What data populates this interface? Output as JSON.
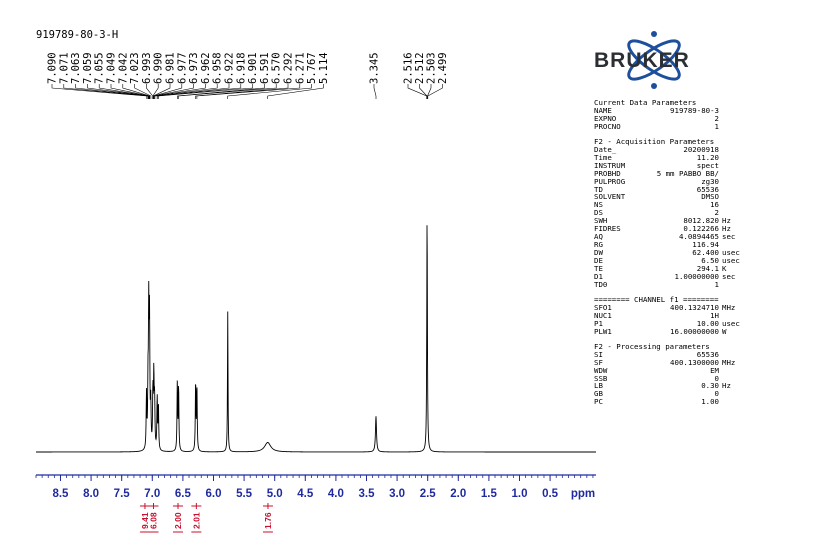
{
  "sample_id": "919789-80-3-H",
  "logo_text": "BRUKER",
  "params": {
    "sections": [
      {
        "title": "Current Data Parameters",
        "rows": [
          {
            "key": "NAME",
            "value": "919789-80-3",
            "unit": ""
          },
          {
            "key": "EXPNO",
            "value": "2",
            "unit": ""
          },
          {
            "key": "PROCNO",
            "value": "1",
            "unit": ""
          }
        ]
      },
      {
        "title": "F2 - Acquisition Parameters",
        "rows": [
          {
            "key": "Date_",
            "value": "20200918",
            "unit": ""
          },
          {
            "key": "Time",
            "value": "11.20",
            "unit": ""
          },
          {
            "key": "INSTRUM",
            "value": "spect",
            "unit": ""
          },
          {
            "key": "PROBHD",
            "value": "5 mm PABBO BB/",
            "unit": ""
          },
          {
            "key": "PULPROG",
            "value": "zg30",
            "unit": ""
          },
          {
            "key": "TD",
            "value": "65536",
            "unit": ""
          },
          {
            "key": "SOLVENT",
            "value": "DMSO",
            "unit": ""
          },
          {
            "key": "NS",
            "value": "16",
            "unit": ""
          },
          {
            "key": "DS",
            "value": "2",
            "unit": ""
          },
          {
            "key": "SWH",
            "value": "8012.820",
            "unit": "Hz"
          },
          {
            "key": "FIDRES",
            "value": "0.122266",
            "unit": "Hz"
          },
          {
            "key": "AQ",
            "value": "4.0894465",
            "unit": "sec"
          },
          {
            "key": "RG",
            "value": "116.94",
            "unit": ""
          },
          {
            "key": "DW",
            "value": "62.400",
            "unit": "usec"
          },
          {
            "key": "DE",
            "value": "6.50",
            "unit": "usec"
          },
          {
            "key": "TE",
            "value": "294.1",
            "unit": "K"
          },
          {
            "key": "D1",
            "value": "1.00000000",
            "unit": "sec"
          },
          {
            "key": "TD0",
            "value": "1",
            "unit": ""
          }
        ]
      },
      {
        "title": "======== CHANNEL f1 ========",
        "rows": [
          {
            "key": "SFO1",
            "value": "400.1324710",
            "unit": "MHz"
          },
          {
            "key": "NUC1",
            "value": "1H",
            "unit": ""
          },
          {
            "key": "P1",
            "value": "10.00",
            "unit": "usec"
          },
          {
            "key": "PLW1",
            "value": "16.00000000",
            "unit": "W"
          }
        ]
      },
      {
        "title": "F2 - Processing parameters",
        "rows": [
          {
            "key": "SI",
            "value": "65536",
            "unit": ""
          },
          {
            "key": "SF",
            "value": "400.1300000",
            "unit": "MHz"
          },
          {
            "key": "WDW",
            "value": "EM",
            "unit": ""
          },
          {
            "key": "SSB",
            "value": "0",
            "unit": ""
          },
          {
            "key": "LB",
            "value": "0.30",
            "unit": "Hz"
          },
          {
            "key": "GB",
            "value": "0",
            "unit": ""
          },
          {
            "key": "PC",
            "value": "1.00",
            "unit": ""
          }
        ]
      }
    ]
  },
  "chart_data": {
    "type": "line",
    "xlabel": "ppm",
    "xlim": [
      8.9,
      -0.25
    ],
    "x_ticks": [
      "8.5",
      "8.0",
      "7.5",
      "7.0",
      "6.5",
      "6.0",
      "5.5",
      "5.0",
      "4.5",
      "4.0",
      "3.5",
      "3.0",
      "2.5",
      "2.0",
      "1.5",
      "1.0",
      "0.5"
    ],
    "peak_labels": [
      "7.090",
      "7.071",
      "7.063",
      "7.059",
      "7.055",
      "7.049",
      "7.042",
      "7.023",
      "6.993",
      "6.990",
      "6.981",
      "6.977",
      "6.973",
      "6.962",
      "6.958",
      "6.922",
      "6.918",
      "6.901",
      "6.591",
      "6.570",
      "6.292",
      "6.271",
      "5.767",
      "5.114",
      "3.345",
      "2.516",
      "2.512",
      "2.503",
      "2.499"
    ],
    "peaks": [
      {
        "ppm": 7.095,
        "height": 0.23,
        "width": 0.006
      },
      {
        "ppm": 7.07,
        "height": 0.25,
        "width": 0.006
      },
      {
        "ppm": 7.058,
        "height": 0.56,
        "width": 0.006
      },
      {
        "ppm": 7.045,
        "height": 0.52,
        "width": 0.006
      },
      {
        "ppm": 7.025,
        "height": 0.18,
        "width": 0.006
      },
      {
        "ppm": 6.99,
        "height": 0.24,
        "width": 0.006
      },
      {
        "ppm": 6.975,
        "height": 0.3,
        "width": 0.006
      },
      {
        "ppm": 6.962,
        "height": 0.2,
        "width": 0.006
      },
      {
        "ppm": 6.92,
        "height": 0.22,
        "width": 0.006
      },
      {
        "ppm": 6.9,
        "height": 0.19,
        "width": 0.006
      },
      {
        "ppm": 6.591,
        "height": 0.29,
        "width": 0.006
      },
      {
        "ppm": 6.57,
        "height": 0.27,
        "width": 0.006
      },
      {
        "ppm": 6.292,
        "height": 0.29,
        "width": 0.006
      },
      {
        "ppm": 6.271,
        "height": 0.27,
        "width": 0.006
      },
      {
        "ppm": 5.767,
        "height": 0.59,
        "width": 0.005
      },
      {
        "ppm": 5.114,
        "height": 0.04,
        "width": 0.06
      },
      {
        "ppm": 3.345,
        "height": 0.15,
        "width": 0.01
      },
      {
        "ppm": 2.51,
        "height": 1.0,
        "width": 0.006
      }
    ],
    "integrals": [
      {
        "value": "9.41",
        "center_ppm": 7.12
      },
      {
        "value": "6.08",
        "center_ppm": 6.98
      },
      {
        "value": "2.00",
        "center_ppm": 6.58
      },
      {
        "value": "2.01",
        "center_ppm": 6.28
      },
      {
        "value": "1.76",
        "center_ppm": 5.11
      }
    ]
  },
  "colors": {
    "spectrum": "#000000",
    "axis": "#1f2aa0",
    "integral": "#c8102e",
    "logo_orbit": "#1d4f9c",
    "logo_text": "#2b2f33"
  }
}
